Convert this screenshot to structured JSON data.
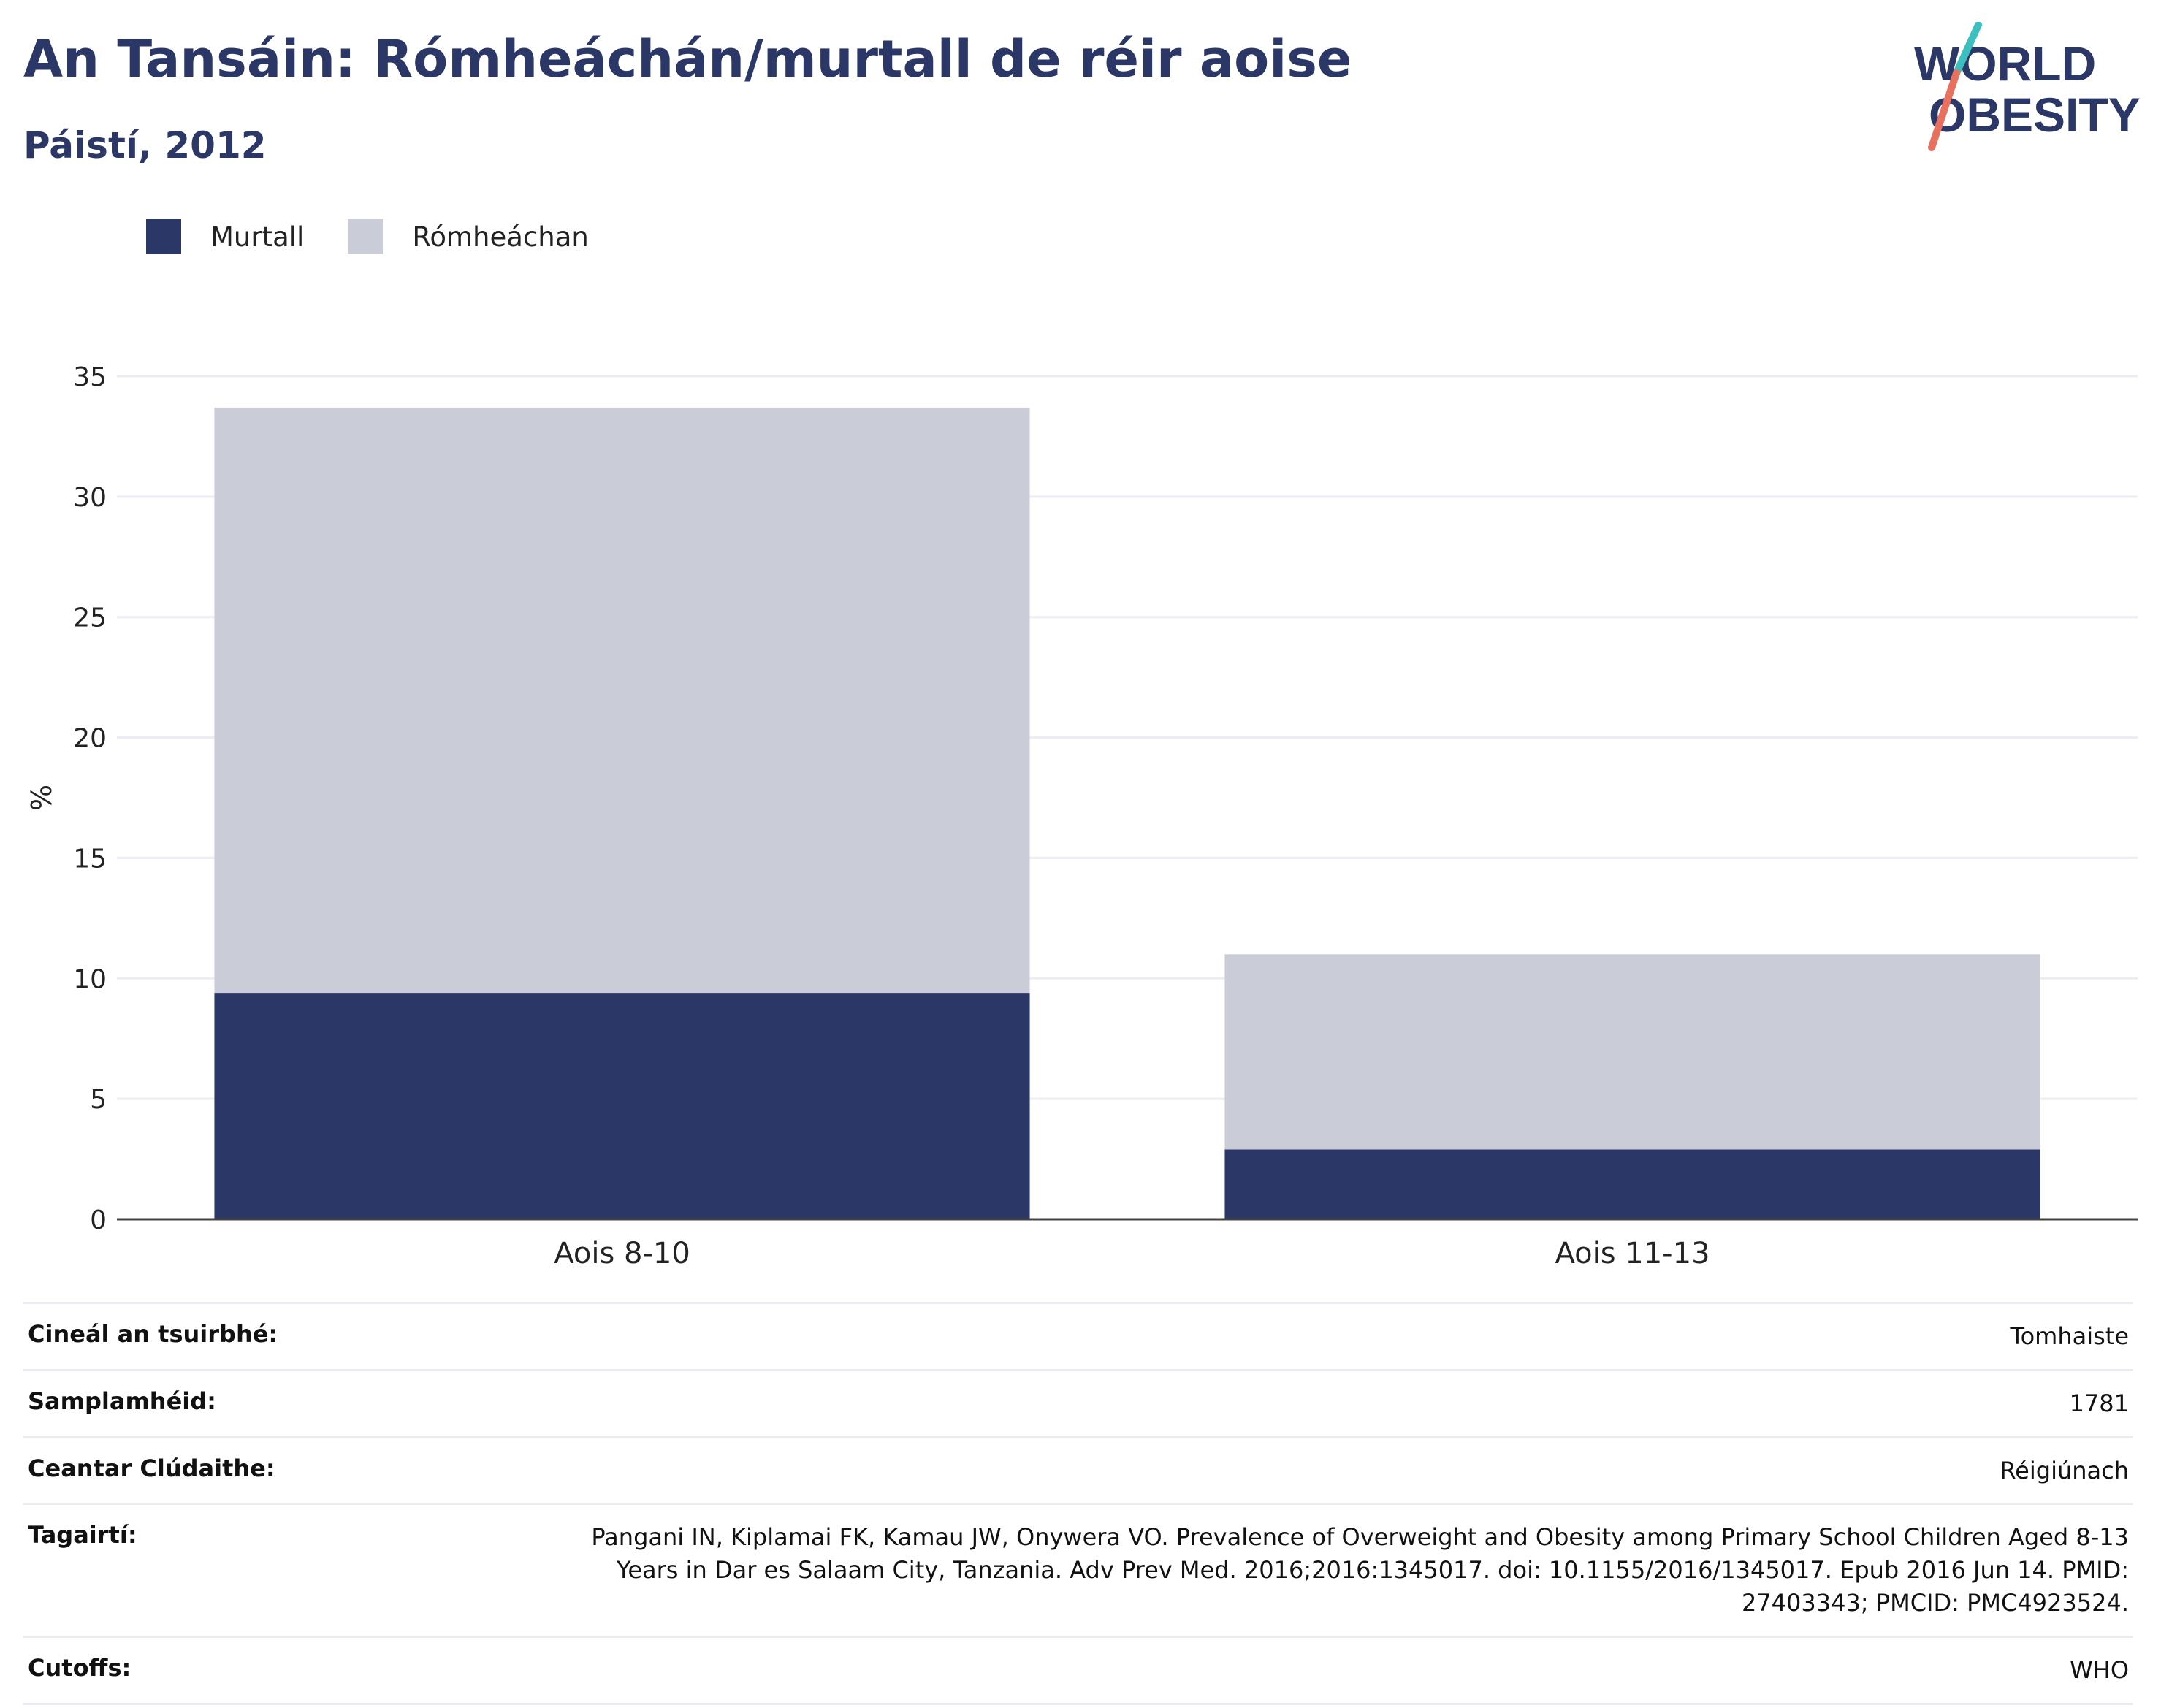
{
  "header": {
    "title": "An Tansáin: Rómheáchán/murtall de réir aoise",
    "subtitle": "Páistí, 2012"
  },
  "logo": {
    "line1": "WORLD",
    "line2": "OBESITY",
    "colors": {
      "text": "#2b3766",
      "slash_top": "#3bbfbf",
      "slash_bottom": "#e8705f"
    }
  },
  "legend": [
    {
      "label": "Murtall",
      "color": "#2b3766"
    },
    {
      "label": "Rómheáchan",
      "color": "#cacdd8"
    }
  ],
  "chart_data": {
    "type": "bar",
    "stacked": true,
    "categories": [
      "Aois 8-10",
      "Aois 11-13"
    ],
    "series": [
      {
        "name": "Murtall",
        "values": [
          9.4,
          2.9
        ],
        "color": "#2b3766"
      },
      {
        "name": "Rómheáchan",
        "values": [
          24.3,
          8.1
        ],
        "color": "#cacdd8"
      }
    ],
    "ylabel": "%",
    "ylim": [
      0,
      35
    ],
    "yticks": [
      0,
      5,
      10,
      15,
      20,
      25,
      30,
      35
    ],
    "grid": true,
    "legend_position": "top-left"
  },
  "info": [
    {
      "label": "Cineál an tsuirbhé:",
      "value": "Tomhaiste"
    },
    {
      "label": "Samplamhéid:",
      "value": "1781"
    },
    {
      "label": "Ceantar Clúdaithe:",
      "value": "Réigiúnach"
    },
    {
      "label": "Tagairtí:",
      "value": "Pangani IN, Kiplamai FK, Kamau JW, Onywera VO. Prevalence of Overweight and Obesity among Primary School Children Aged 8-13 Years in Dar es Salaam City, Tanzania. Adv Prev Med. 2016;2016:1345017. doi: 10.1155/2016/1345017. Epub 2016 Jun 14. PMID: 27403343; PMCID: PMC4923524."
    },
    {
      "label": "Cutoffs:",
      "value": "WHO"
    }
  ]
}
